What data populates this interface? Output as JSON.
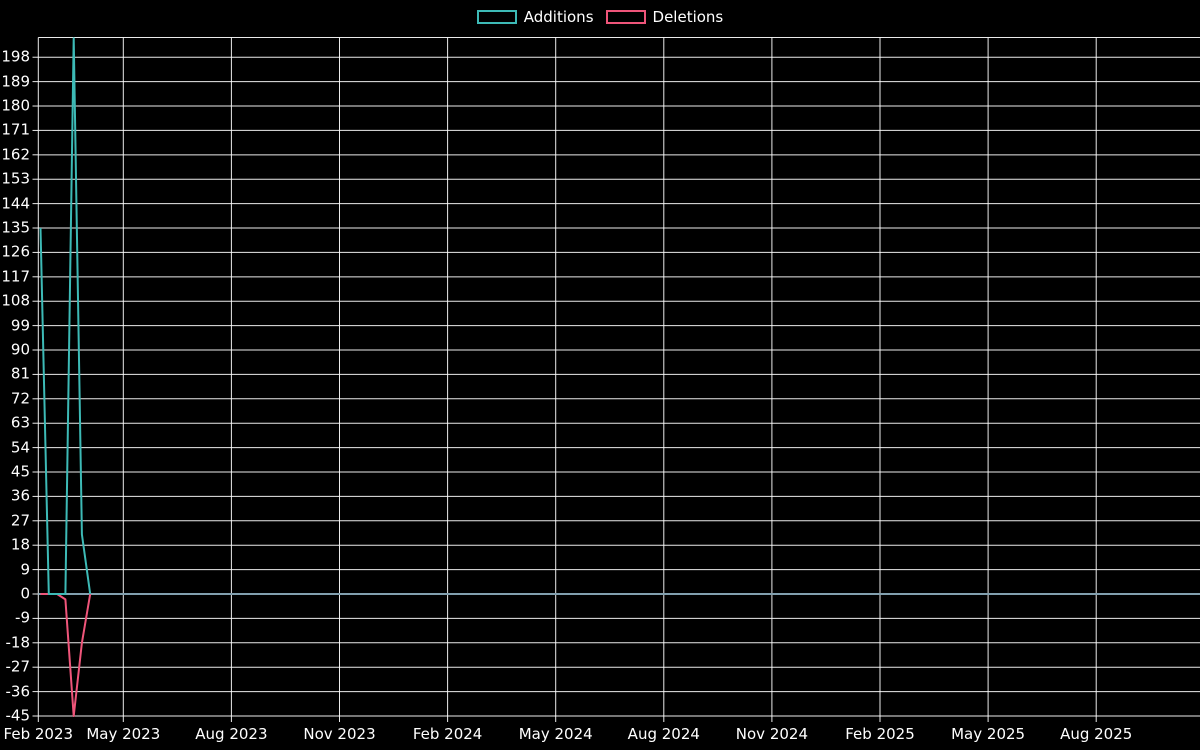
{
  "chart_data": {
    "type": "line",
    "title": "",
    "legend": {
      "position": "top",
      "items": [
        {
          "label": "Additions",
          "color": "#3dbab6"
        },
        {
          "label": "Deletions",
          "color": "#ef557a"
        }
      ]
    },
    "x_axis": {
      "tick_labels": [
        "Feb 2023",
        "May 2023",
        "Aug 2023",
        "Nov 2023",
        "Feb 2024",
        "May 2024",
        "Aug 2024",
        "Nov 2024",
        "Feb 2025",
        "May 2025",
        "Aug 2025"
      ],
      "range_note": "time axis from mid Feb 2023 to late Oct 2025"
    },
    "y_axis": {
      "tick_labels": [
        198,
        189,
        180,
        171,
        162,
        153,
        144,
        135,
        126,
        117,
        108,
        99,
        90,
        81,
        72,
        63,
        54,
        45,
        36,
        27,
        18,
        9,
        0,
        -9,
        -18,
        -27,
        -36,
        -45
      ],
      "tick_step": 9,
      "min": -45,
      "max": 205
    },
    "series": [
      {
        "name": "Additions",
        "color": "#3dbab6",
        "weeks": [
          "2023-02-19",
          "2023-02-26",
          "2023-03-05",
          "2023-03-12",
          "2023-03-19",
          "2023-03-26",
          "2023-04-02"
        ],
        "values": [
          135,
          0,
          0,
          0,
          205,
          22,
          0
        ],
        "after": "0 for all later weeks"
      },
      {
        "name": "Deletions",
        "color": "#ef557a",
        "weeks": [
          "2023-02-19",
          "2023-02-26",
          "2023-03-05",
          "2023-03-12",
          "2023-03-19",
          "2023-03-26",
          "2023-04-02"
        ],
        "values": [
          0,
          0,
          0,
          -2,
          -45,
          -18,
          0
        ],
        "after": "0 for all later weeks"
      }
    ],
    "zero_line_color": "#82a0af",
    "grid": {
      "show": true,
      "color": "#ffffff",
      "background": "#000000"
    }
  }
}
